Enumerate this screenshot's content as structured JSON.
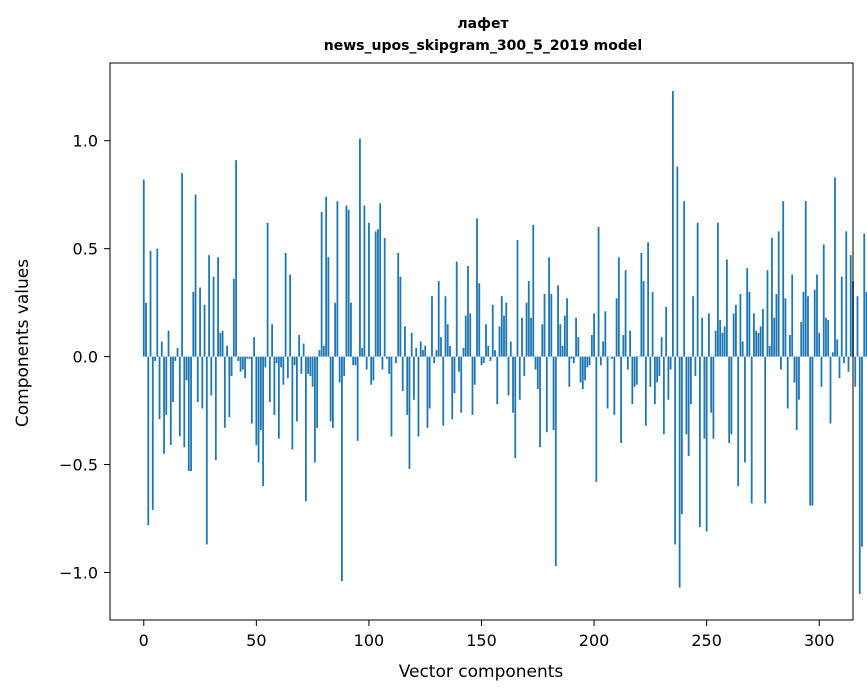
{
  "chart_data": {
    "type": "bar",
    "title": "лафет",
    "subtitle": "news_upos_skipgram_300_5_2019 model",
    "xlabel": "Vector components",
    "ylabel": "Components values",
    "xlim": [
      -15,
      315
    ],
    "ylim": [
      -1.22,
      1.36
    ],
    "x_ticks": [
      0,
      50,
      100,
      150,
      200,
      250,
      300
    ],
    "x_tick_labels": [
      "0",
      "50",
      "100",
      "150",
      "200",
      "250",
      "300"
    ],
    "y_ticks": [
      -1.0,
      -0.5,
      0.0,
      0.5,
      1.0
    ],
    "y_tick_labels": [
      "−1.0",
      "−0.5",
      "0.0",
      "0.5",
      "1.0"
    ],
    "grid": false,
    "bar_color": "#1f77b4",
    "values": [
      0.82,
      0.25,
      -0.78,
      0.49,
      -0.71,
      -0.02,
      0.5,
      -0.29,
      0.07,
      -0.45,
      -0.27,
      0.12,
      -0.41,
      -0.21,
      -0.02,
      0.04,
      -0.37,
      0.85,
      -0.42,
      -0.11,
      -0.53,
      -0.53,
      0.3,
      0.75,
      -0.21,
      0.32,
      -0.24,
      0.24,
      -0.87,
      0.47,
      -0.18,
      0.37,
      -0.48,
      0.46,
      0.11,
      0.12,
      -0.33,
      0.05,
      -0.28,
      -0.09,
      0.36,
      0.91,
      -0.02,
      -0.07,
      -0.06,
      -0.1,
      -0.01,
      -0.01,
      -0.31,
      0.09,
      -0.41,
      -0.49,
      -0.34,
      -0.6,
      -0.05,
      0.62,
      -0.21,
      0.15,
      -0.27,
      -0.03,
      -0.38,
      -0.05,
      -0.13,
      0.48,
      -0.1,
      0.38,
      -0.43,
      -0.04,
      -0.3,
      0.1,
      -0.08,
      0.06,
      -0.67,
      -0.08,
      -0.09,
      -0.14,
      -0.49,
      -0.33,
      0.03,
      0.67,
      0.05,
      0.74,
      0.46,
      -0.3,
      -0.33,
      0.25,
      0.72,
      -0.12,
      -1.04,
      -0.09,
      0.7,
      0.68,
      0.25,
      -0.04,
      -0.04,
      -0.39,
      1.01,
      0.04,
      0.7,
      -0.06,
      0.62,
      -0.13,
      -0.11,
      0.58,
      0.59,
      0.71,
      -0.06,
      0.55,
      -0.01,
      -0.08,
      -0.37,
      0.0,
      -0.03,
      0.48,
      0.37,
      -0.16,
      0.14,
      -0.27,
      -0.52,
      0.11,
      -0.2,
      0.04,
      -0.37,
      0.07,
      0.03,
      0.05,
      -0.33,
      -0.24,
      0.28,
      -0.03,
      0.03,
      0.35,
      0.09,
      -0.32,
      0.28,
      0.15,
      0.05,
      -0.29,
      -0.17,
      0.44,
      -0.07,
      -0.26,
      0.04,
      0.19,
      0.42,
      0.2,
      -0.27,
      -0.13,
      0.64,
      0.34,
      -0.04,
      -0.03,
      0.15,
      0.05,
      -0.02,
      0.24,
      0.03,
      -0.22,
      0.14,
      0.28,
      0.19,
      0.25,
      -0.18,
      0.07,
      -0.26,
      -0.47,
      0.54,
      -0.2,
      0.18,
      -0.09,
      0.25,
      0.35,
      0.18,
      0.61,
      -0.06,
      -0.15,
      -0.42,
      0.15,
      0.29,
      -0.35,
      0.46,
      0.29,
      -0.34,
      -0.97,
      0.33,
      0.15,
      0.05,
      0.19,
      0.27,
      -0.14,
      -0.01,
      -0.03,
      0.18,
      0.09,
      -0.12,
      -0.15,
      -0.11,
      -0.05,
      -0.04,
      0.1,
      0.2,
      -0.58,
      0.6,
      -0.04,
      0.07,
      0.21,
      -0.24,
      0.0,
      -0.01,
      -0.27,
      0.27,
      0.46,
      -0.4,
      0.1,
      0.4,
      -0.06,
      0.12,
      -0.22,
      -0.14,
      -0.13,
      0.0,
      0.48,
      0.35,
      -0.32,
      0.53,
      -0.14,
      0.3,
      -0.22,
      -0.12,
      -0.09,
      0.09,
      -0.36,
      0.23,
      -0.2,
      -0.06,
      1.23,
      -0.87,
      0.88,
      -1.07,
      -0.73,
      0.72,
      -0.36,
      -0.46,
      -0.22,
      0.28,
      -0.09,
      0.62,
      -0.79,
      0.18,
      -0.38,
      -0.81,
      0.2,
      -0.26,
      -0.38,
      0.12,
      0.62,
      0.17,
      0.11,
      0.14,
      0.45,
      -0.4,
      -0.36,
      0.2,
      0.24,
      -0.6,
      0.29,
      0.07,
      -0.49,
      0.41,
      0.3,
      -0.68,
      0.2,
      0.12,
      0.11,
      0.14,
      0.22,
      -0.68,
      0.4,
      0.05,
      0.55,
      0.18,
      0.29,
      0.58,
      -0.06,
      0.72,
      0.27,
      -0.24,
      0.1,
      0.38,
      -0.12,
      -0.34,
      -0.2,
      0.16,
      0.3,
      0.72,
      0.28,
      -0.69,
      -0.69,
      0.31,
      0.38,
      0.11,
      -0.14,
      0.52,
      0.18,
      0.17,
      -0.31,
      0.02,
      0.83,
      0.08,
      -0.1,
      0.37,
      -0.03,
      0.58,
      -0.07,
      0.47,
      0.35,
      -0.14,
      0.28,
      -1.1,
      -0.88,
      0.57,
      0.3,
      -0.38
    ]
  }
}
